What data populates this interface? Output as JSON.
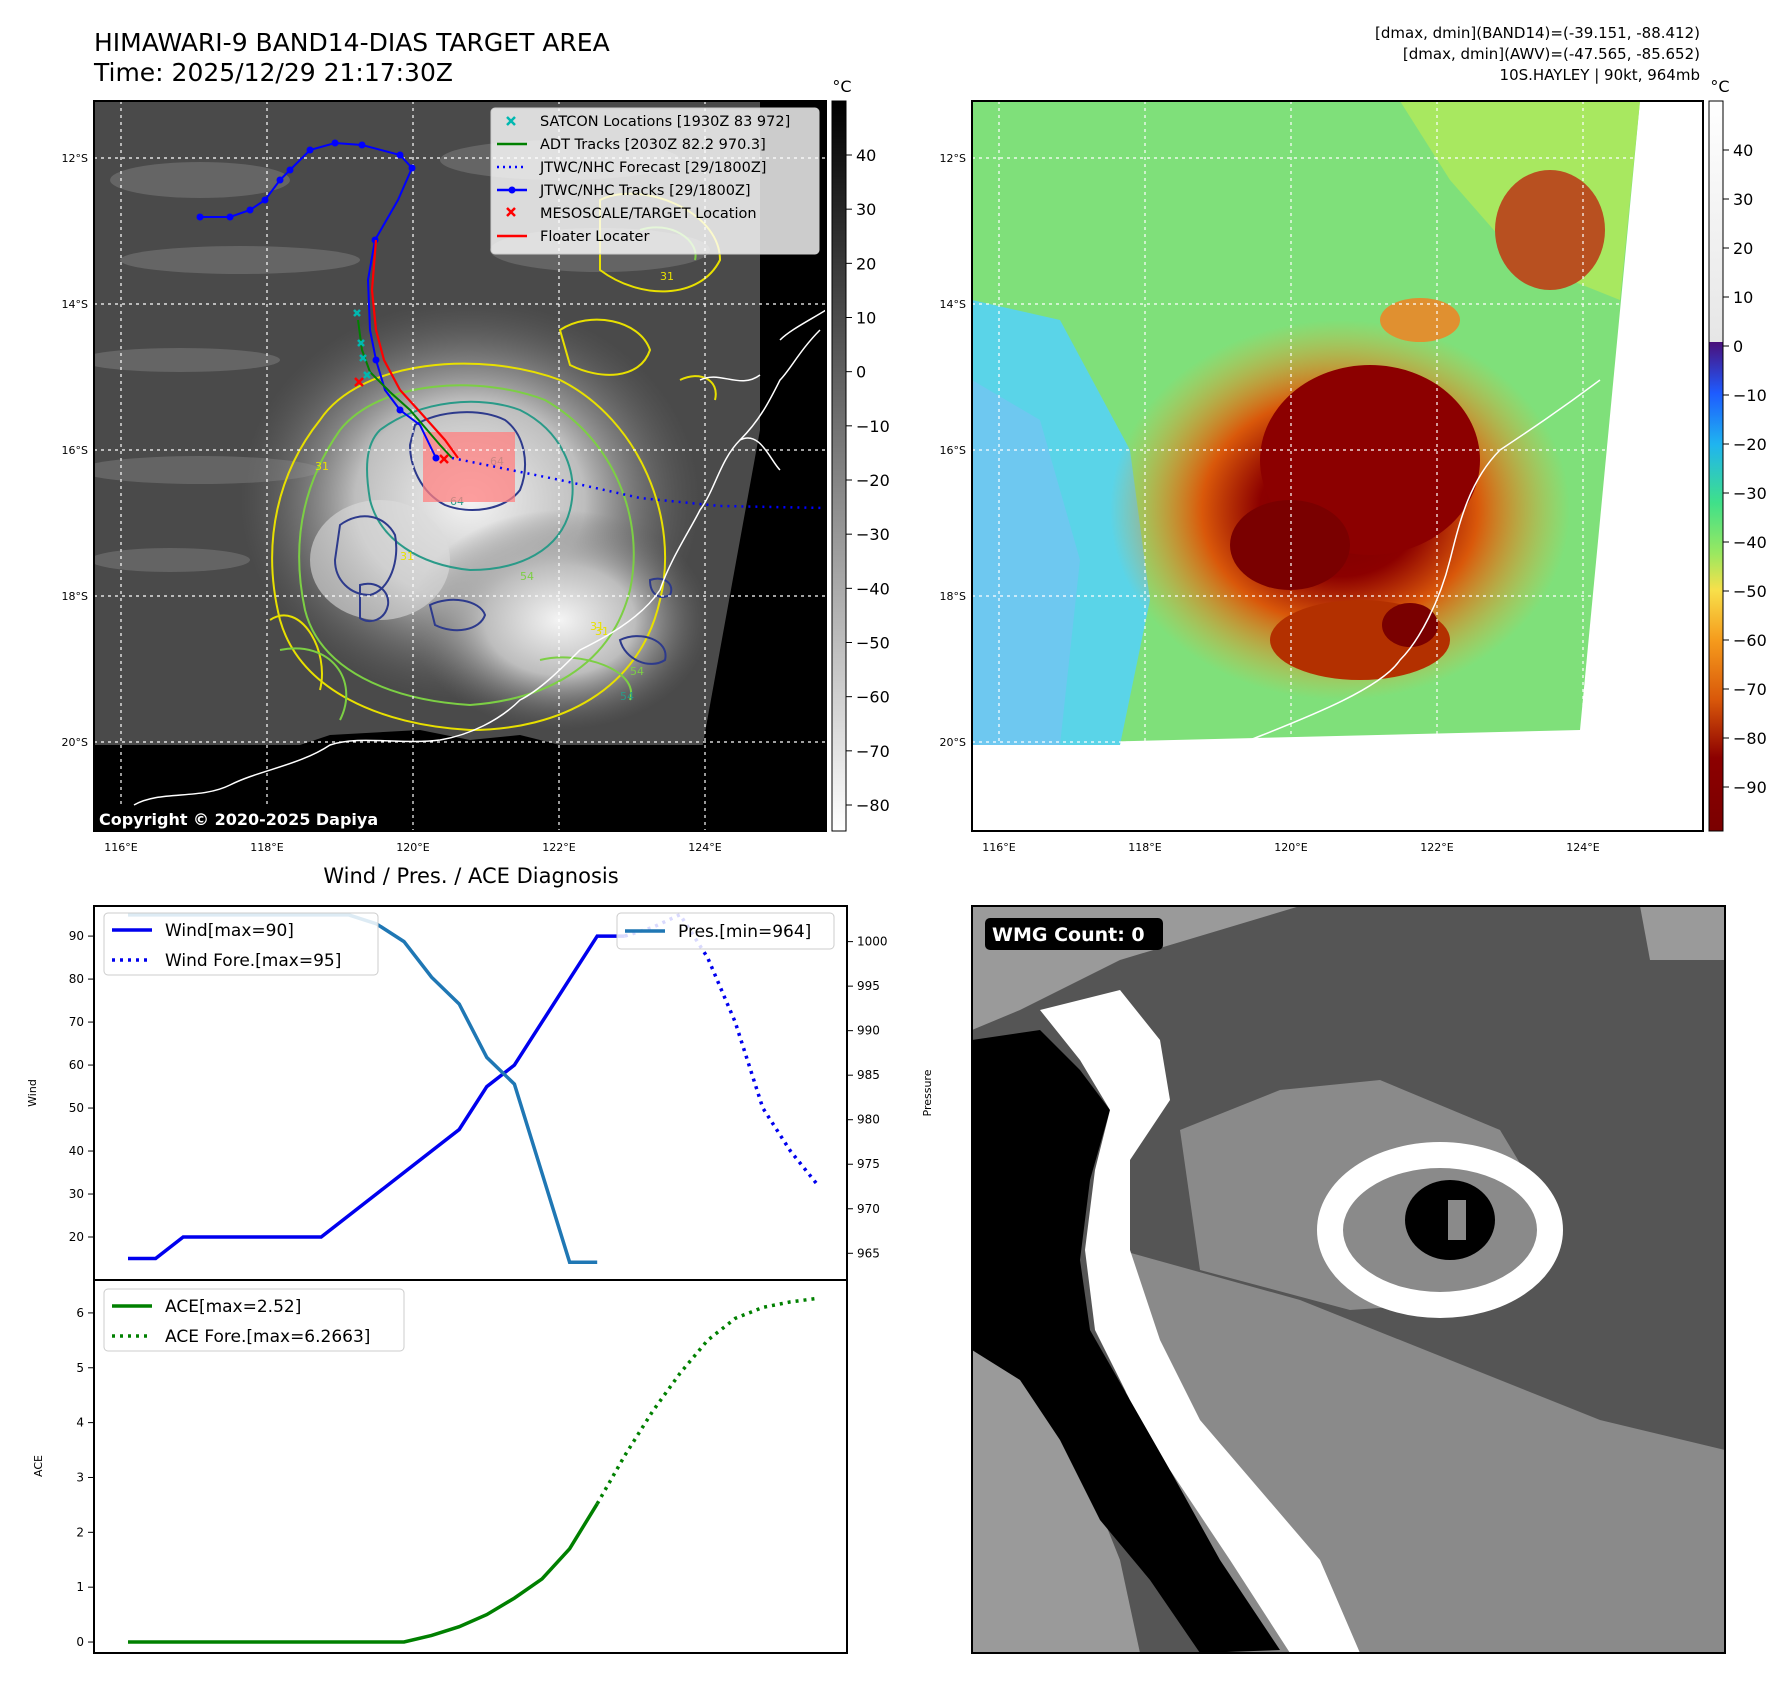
{
  "header": {
    "title_line1": "HIMAWARI-9 BAND14-DIAS TARGET AREA",
    "title_line2": "Time: 2025/12/29 21:17:30Z",
    "info_line1": "[dmax, dmin](BAND14)=(-39.151, -88.412)",
    "info_line2": "[dmax, dmin](AWV)=(-47.565, -85.652)",
    "info_line3": "10S.HAYLEY | 90kt, 964mb"
  },
  "map_axes": {
    "lon_ticks": [
      "116°E",
      "118°E",
      "120°E",
      "122°E",
      "124°E"
    ],
    "lat_ticks": [
      "12°S",
      "14°S",
      "16°S",
      "18°S",
      "20°S"
    ]
  },
  "panel_ir": {
    "colorbar_unit": "°C",
    "colorbar_ticks": [
      "40",
      "30",
      "20",
      "10",
      "0",
      "−10",
      "−20",
      "−30",
      "−40",
      "−50",
      "−60",
      "−70",
      "−80"
    ],
    "contour_labels": [
      "31",
      "31",
      "31",
      "31",
      "54",
      "54",
      "64",
      "64",
      "31",
      "54"
    ],
    "legend": [
      {
        "label": "SATCON Locations [1930Z 83 972]",
        "color": "#00b8b0",
        "marker": "x-mark"
      },
      {
        "label": "ADT Tracks [2030Z 82.2 970.3]",
        "color": "#008000",
        "marker": "solid-line"
      },
      {
        "label": "JTWC/NHC Forecast [29/1800Z]",
        "color": "#0000ff",
        "marker": "dotted-line"
      },
      {
        "label": "JTWC/NHC Tracks [29/1800Z]",
        "color": "#0000ff",
        "marker": "line-dot"
      },
      {
        "label": "MESOSCALE/TARGET Location",
        "color": "#ff0000",
        "marker": "x-mark"
      },
      {
        "label": "Floater Locater",
        "color": "#ff0000",
        "marker": "solid-line"
      }
    ],
    "copyright": "Copyright © 2020-2025 Dapiya"
  },
  "panel_awv": {
    "colorbar_unit": "°C",
    "colorbar_ticks": [
      "40",
      "30",
      "20",
      "10",
      "0",
      "−10",
      "−20",
      "−30",
      "−40",
      "−50",
      "−60",
      "−70",
      "−80",
      "−90"
    ]
  },
  "panel_wmg": {
    "badge": "WMG Count: 0"
  },
  "chart_data": [
    {
      "type": "line",
      "title": "Wind / Pres. / ACE Diagnosis",
      "ylabel": "Wind",
      "ylabel_right": "Pressure",
      "ylim": [
        10,
        97
      ],
      "ylim_right": [
        962,
        1004
      ],
      "yticks": [
        20,
        30,
        40,
        50,
        60,
        70,
        80,
        90
      ],
      "yticks_right": [
        965,
        970,
        975,
        980,
        985,
        990,
        995,
        1000
      ],
      "x": [
        0,
        1,
        2,
        3,
        4,
        5,
        6,
        7,
        8,
        9,
        10,
        11,
        12,
        13,
        14,
        15,
        16,
        17,
        18,
        19,
        20,
        21,
        22,
        23,
        24
      ],
      "series": [
        {
          "name": "Wind[max=90]",
          "style": "solid",
          "color": "#0000ee",
          "x": [
            0,
            1,
            2,
            3,
            4,
            5,
            6,
            7,
            8,
            9,
            10,
            11,
            12,
            13,
            14,
            15,
            16,
            17,
            18
          ],
          "values": [
            15,
            15,
            20,
            20,
            20,
            20,
            20,
            20,
            25,
            30,
            35,
            40,
            45,
            55,
            60,
            70,
            80,
            90,
            90
          ]
        },
        {
          "name": "Wind Fore.[max=95]",
          "style": "dotted",
          "color": "#0000ee",
          "x": [
            18,
            19,
            20,
            21,
            22,
            23,
            24,
            25
          ],
          "values": [
            90,
            92,
            95,
            85,
            70,
            50,
            40,
            32
          ]
        },
        {
          "name": "Pres.[min=964]",
          "style": "solid",
          "color": "#1f77b4",
          "axis": "right",
          "x": [
            0,
            1,
            2,
            3,
            4,
            5,
            6,
            7,
            8,
            9,
            10,
            11,
            12,
            13,
            14,
            15,
            16,
            17
          ],
          "values": [
            1003,
            1003,
            1003,
            1003,
            1003,
            1003,
            1003,
            1003,
            1003,
            1002,
            1000,
            996,
            993,
            987,
            984,
            974,
            964,
            964
          ]
        }
      ]
    },
    {
      "type": "line",
      "ylabel": "ACE",
      "ylim": [
        -0.2,
        6.6
      ],
      "yticks": [
        0,
        1,
        2,
        3,
        4,
        5,
        6
      ],
      "series": [
        {
          "name": "ACE[max=2.52]",
          "style": "solid",
          "color": "#008000",
          "x": [
            0,
            5,
            10,
            11,
            12,
            13,
            14,
            15,
            16,
            17
          ],
          "values": [
            0,
            0,
            0,
            0.12,
            0.28,
            0.5,
            0.8,
            1.15,
            1.7,
            2.52
          ]
        },
        {
          "name": "ACE Fore.[max=6.2663]",
          "style": "dotted",
          "color": "#008000",
          "x": [
            17,
            18,
            19,
            20,
            21,
            22,
            23,
            24,
            25
          ],
          "values": [
            2.52,
            3.4,
            4.2,
            4.9,
            5.5,
            5.9,
            6.1,
            6.2,
            6.2663
          ]
        }
      ]
    }
  ]
}
